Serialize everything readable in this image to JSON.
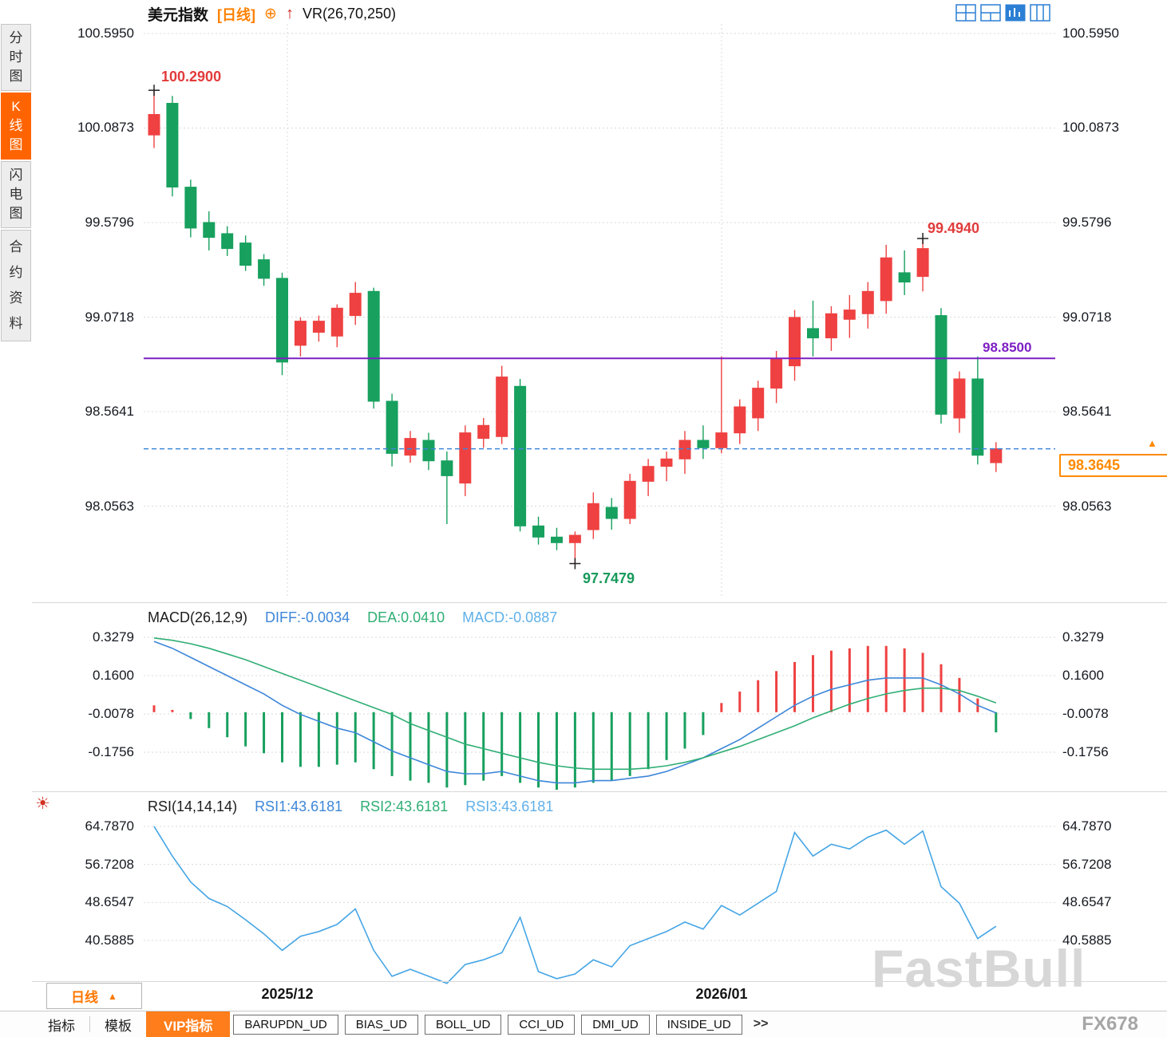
{
  "header": {
    "symbol": "美元指数",
    "period_tag": "[日线]",
    "plus_icon": "⊕",
    "arrow_icon": "↑",
    "vr_label": "VR(26,70,250)"
  },
  "sidebar": {
    "tabs": [
      {
        "label": "分时图",
        "active": false
      },
      {
        "label": "K线图",
        "active": true
      },
      {
        "label": "闪电图",
        "active": false
      },
      {
        "label": "合约资料",
        "active": false
      }
    ]
  },
  "annotations": {
    "high": "100.2900",
    "peak": "99.4940",
    "low": "97.7479"
  },
  "hline": {
    "label": "98.8500"
  },
  "price_box": {
    "value": "98.3645",
    "marker": "▲"
  },
  "macd_header": {
    "title": "MACD(26,12,9)",
    "diff": "DIFF:-0.0034",
    "dea": "DEA:0.0410",
    "macd": "MACD:-0.0887"
  },
  "rsi_header": {
    "title": "RSI(14,14,14)",
    "rsi1": "RSI1:43.6181",
    "rsi2": "RSI2:43.6181",
    "rsi3": "RSI3:43.6181"
  },
  "x_axis": {
    "labels": [
      {
        "text": "2025/12",
        "x": 360
      },
      {
        "text": "2026/01",
        "x": 904
      }
    ]
  },
  "bottom_toolbar": {
    "period": "日线",
    "period_marker": "▲",
    "tabs": [
      {
        "label": "指标",
        "style": "plain"
      },
      {
        "label": "模板",
        "style": "plain"
      },
      {
        "label": "VIP指标",
        "style": "orange"
      },
      {
        "label": "BARUPDN_UD",
        "style": "boxed"
      },
      {
        "label": "BIAS_UD",
        "style": "boxed"
      },
      {
        "label": "BOLL_UD",
        "style": "boxed"
      },
      {
        "label": "CCI_UD",
        "style": "boxed"
      },
      {
        "label": "DMI_UD",
        "style": "boxed"
      },
      {
        "label": "INSIDE_UD",
        "style": "boxed"
      },
      {
        "label": ">>",
        "style": "more"
      }
    ]
  },
  "watermarks": {
    "fastbull": "FastBull",
    "fx678": "FX678"
  },
  "colors": {
    "up": "#ef4141",
    "down": "#17a05e",
    "diff_line": "#3d86d8",
    "dea_line": "#2fae74",
    "rsi_line": "#45a5e5",
    "hline": "#7d1fc4",
    "price_line": "#3d86d8",
    "accent_orange": "#ff7d1a",
    "grid": "#d9d9d9"
  },
  "chart_data": [
    {
      "type": "candlestick",
      "title": "美元指数 日线",
      "y_ticks": [
        "100.5950",
        "100.0873",
        "99.5796",
        "99.0718",
        "98.5641",
        "98.0563"
      ],
      "hline": 98.85,
      "last_price": 98.3645,
      "high_point": 100.29,
      "low_point": 97.7479,
      "peak_point": 99.494,
      "candles": [
        [
          100.05,
          100.29,
          99.98,
          100.16
        ],
        [
          100.22,
          100.26,
          99.72,
          99.77
        ],
        [
          99.77,
          99.81,
          99.5,
          99.55
        ],
        [
          99.58,
          99.64,
          99.43,
          99.5
        ],
        [
          99.52,
          99.56,
          99.4,
          99.44
        ],
        [
          99.47,
          99.51,
          99.32,
          99.35
        ],
        [
          99.38,
          99.41,
          99.24,
          99.28
        ],
        [
          99.28,
          99.31,
          98.76,
          98.83
        ],
        [
          98.92,
          99.07,
          98.86,
          99.05
        ],
        [
          98.99,
          99.08,
          98.94,
          99.05
        ],
        [
          98.97,
          99.14,
          98.91,
          99.12
        ],
        [
          99.08,
          99.26,
          99.03,
          99.2
        ],
        [
          99.21,
          99.23,
          98.58,
          98.62
        ],
        [
          98.62,
          98.66,
          98.27,
          98.34
        ],
        [
          98.33,
          98.46,
          98.29,
          98.42
        ],
        [
          98.41,
          98.45,
          98.25,
          98.3
        ],
        [
          98.3,
          98.35,
          97.96,
          98.22
        ],
        [
          98.18,
          98.49,
          98.11,
          98.45
        ],
        [
          98.42,
          98.53,
          98.37,
          98.49
        ],
        [
          98.43,
          98.81,
          98.39,
          98.75
        ],
        [
          98.7,
          98.74,
          97.92,
          97.95
        ],
        [
          97.95,
          98.0,
          97.85,
          97.89
        ],
        [
          97.89,
          97.94,
          97.82,
          97.86
        ],
        [
          97.86,
          97.92,
          97.7479,
          97.9
        ],
        [
          97.93,
          98.13,
          97.88,
          98.07
        ],
        [
          98.05,
          98.1,
          97.93,
          97.99
        ],
        [
          97.99,
          98.23,
          97.96,
          98.19
        ],
        [
          98.19,
          98.31,
          98.11,
          98.27
        ],
        [
          98.27,
          98.35,
          98.19,
          98.31
        ],
        [
          98.31,
          98.46,
          98.23,
          98.41
        ],
        [
          98.41,
          98.49,
          98.31,
          98.37
        ],
        [
          98.37,
          98.86,
          98.34,
          98.45
        ],
        [
          98.45,
          98.63,
          98.39,
          98.59
        ],
        [
          98.53,
          98.73,
          98.46,
          98.69
        ],
        [
          98.69,
          98.89,
          98.61,
          98.85
        ],
        [
          98.81,
          99.11,
          98.73,
          99.07
        ],
        [
          99.01,
          99.16,
          98.86,
          98.96
        ],
        [
          98.96,
          99.13,
          98.89,
          99.09
        ],
        [
          99.06,
          99.19,
          98.96,
          99.11
        ],
        [
          99.09,
          99.26,
          99.01,
          99.21
        ],
        [
          99.16,
          99.46,
          99.09,
          99.39
        ],
        [
          99.31,
          99.43,
          99.19,
          99.26
        ],
        [
          99.29,
          99.494,
          99.21,
          99.44
        ],
        [
          99.08,
          99.12,
          98.5,
          98.55
        ],
        [
          98.53,
          98.78,
          98.45,
          98.74
        ],
        [
          98.74,
          98.86,
          98.28,
          98.33
        ],
        [
          98.29,
          98.4,
          98.24,
          98.3645
        ]
      ],
      "markers": [
        {
          "index": 0,
          "pos": "high",
          "label": "100.2900"
        },
        {
          "index": 23,
          "pos": "low",
          "label": "97.7479"
        },
        {
          "index": 42,
          "pos": "high",
          "label": "99.4940"
        }
      ],
      "x_tick_labels": [
        "2025/12",
        "2026/01"
      ]
    },
    {
      "type": "macd",
      "name": "MACD(26,12,9)",
      "y_ticks": [
        "0.3279",
        "0.1600",
        "-0.0078",
        "-0.1756"
      ],
      "diff": [
        0.31,
        0.28,
        0.24,
        0.2,
        0.16,
        0.12,
        0.08,
        0.03,
        -0.01,
        -0.04,
        -0.07,
        -0.09,
        -0.13,
        -0.17,
        -0.2,
        -0.23,
        -0.26,
        -0.27,
        -0.27,
        -0.26,
        -0.28,
        -0.3,
        -0.31,
        -0.31,
        -0.3,
        -0.3,
        -0.29,
        -0.28,
        -0.26,
        -0.23,
        -0.2,
        -0.16,
        -0.12,
        -0.07,
        -0.02,
        0.03,
        0.07,
        0.1,
        0.12,
        0.14,
        0.15,
        0.15,
        0.15,
        0.12,
        0.08,
        0.03,
        -0.0034
      ],
      "dea": [
        0.325,
        0.315,
        0.3,
        0.28,
        0.255,
        0.23,
        0.2,
        0.17,
        0.14,
        0.11,
        0.08,
        0.05,
        0.02,
        -0.01,
        -0.05,
        -0.08,
        -0.11,
        -0.14,
        -0.16,
        -0.18,
        -0.2,
        -0.22,
        -0.235,
        -0.245,
        -0.25,
        -0.25,
        -0.25,
        -0.245,
        -0.235,
        -0.22,
        -0.2,
        -0.175,
        -0.15,
        -0.12,
        -0.09,
        -0.06,
        -0.025,
        0.005,
        0.035,
        0.06,
        0.08,
        0.095,
        0.105,
        0.105,
        0.095,
        0.07,
        0.041
      ],
      "hist": [
        0.03,
        0.01,
        -0.03,
        -0.07,
        -0.11,
        -0.15,
        -0.18,
        -0.22,
        -0.24,
        -0.24,
        -0.23,
        -0.22,
        -0.25,
        -0.28,
        -0.3,
        -0.31,
        -0.33,
        -0.32,
        -0.3,
        -0.28,
        -0.31,
        -0.33,
        -0.34,
        -0.33,
        -0.31,
        -0.3,
        -0.28,
        -0.25,
        -0.21,
        -0.16,
        -0.1,
        0.04,
        0.09,
        0.14,
        0.18,
        0.22,
        0.25,
        0.27,
        0.28,
        0.29,
        0.29,
        0.28,
        0.26,
        0.21,
        0.15,
        0.06,
        -0.0887
      ]
    },
    {
      "type": "rsi",
      "name": "RSI(14,14,14)",
      "y_ticks": [
        "64.7870",
        "56.7208",
        "48.6547",
        "40.5885"
      ],
      "values": [
        64.8,
        58.5,
        53.0,
        49.5,
        47.8,
        45.0,
        42.0,
        38.5,
        41.5,
        42.5,
        44.0,
        47.3,
        38.5,
        33.0,
        34.5,
        33.0,
        31.5,
        35.5,
        36.5,
        38.0,
        45.5,
        34.0,
        32.5,
        33.5,
        36.5,
        35.0,
        39.5,
        41.0,
        42.5,
        44.5,
        43.0,
        48.0,
        46.0,
        48.5,
        51.0,
        63.5,
        58.5,
        61.0,
        60.0,
        62.5,
        64.0,
        61.0,
        63.8,
        52.0,
        48.5,
        41.0,
        43.6181
      ]
    }
  ]
}
